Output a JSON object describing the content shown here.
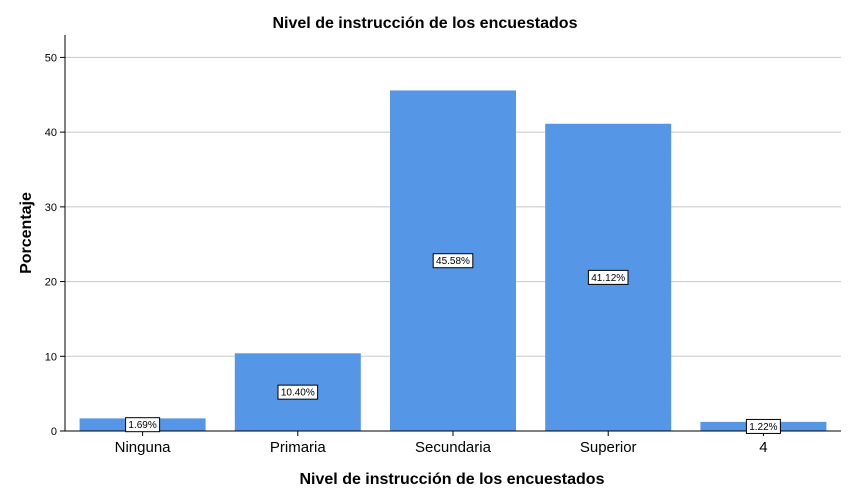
{
  "chart_data": {
    "type": "bar",
    "title": "Nivel de instrucción de los encuestados",
    "xlabel": "Nivel de instrucción de los encuestados",
    "ylabel": "Porcentaje",
    "categories": [
      "Ninguna",
      "Primaria",
      "Secundaria",
      "Superior",
      "4"
    ],
    "values": [
      1.69,
      10.4,
      45.58,
      41.12,
      1.22
    ],
    "data_labels": [
      "1.69%",
      "10.40%",
      "45.58%",
      "41.12%",
      "1.22%"
    ],
    "ylim": [
      0,
      53
    ],
    "yticks": [
      0,
      10,
      20,
      30,
      40,
      50
    ],
    "grid": true,
    "bar_color": "#5596e6"
  }
}
